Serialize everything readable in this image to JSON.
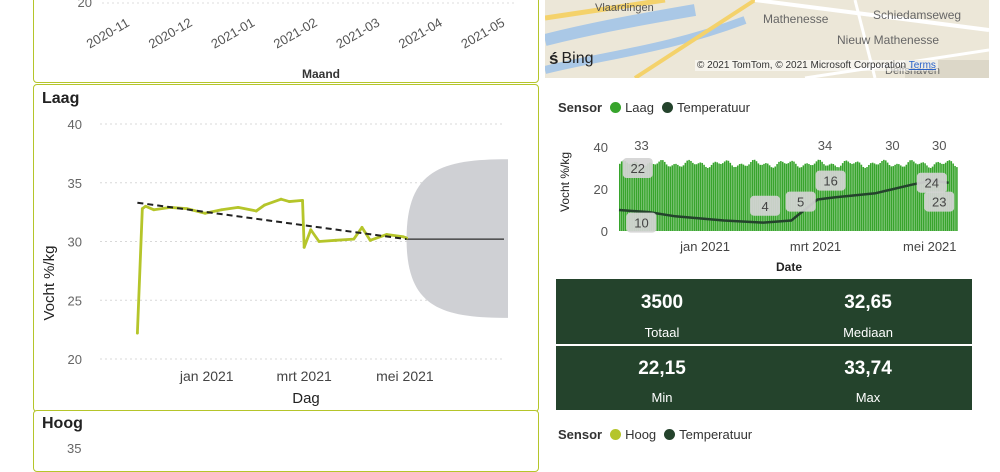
{
  "top_chart": {
    "y_tick": "20",
    "x_ticks": [
      "2020-11",
      "2020-12",
      "2021-01",
      "2021-02",
      "2021-03",
      "2021-04",
      "2021-05"
    ],
    "xlabel": "Maand"
  },
  "laag_panel": {
    "title": "Laag",
    "chart_data": {
      "type": "line",
      "ylabel": "Vocht %/kg",
      "xlabel": "Dag",
      "ylim": [
        20,
        40
      ],
      "y_ticks": [
        "40",
        "35",
        "30",
        "25",
        "20"
      ],
      "x_ticks": [
        "jan 2021",
        "mrt 2021",
        "mei 2021"
      ],
      "series": [
        {
          "x": [
            "2020-11-20",
            "2020-11-23",
            "2020-11-25",
            "2020-11-30",
            "2020-12-10",
            "2020-12-20",
            "2020-12-31",
            "2021-01-10",
            "2021-01-20",
            "2021-01-31",
            "2021-02-05",
            "2021-02-15",
            "2021-02-20",
            "2021-02-28",
            "2021-03-01",
            "2021-03-05",
            "2021-03-10",
            "2021-03-20",
            "2021-03-31",
            "2021-04-05",
            "2021-04-10",
            "2021-04-20",
            "2021-04-30",
            "2021-05-02"
          ],
          "values": [
            22.2,
            32.8,
            33.0,
            32.7,
            32.9,
            32.8,
            32.4,
            32.7,
            32.9,
            32.6,
            33.1,
            33.6,
            33.4,
            33.5,
            29.5,
            31.0,
            30.0,
            30.1,
            30.2,
            31.2,
            30.1,
            30.6,
            30.4,
            30.3
          ]
        }
      ],
      "trend": {
        "start": 33.3,
        "end": 30.2,
        "style": "dashed"
      },
      "forecast": {
        "value": 30.2,
        "lower": 23.5,
        "upper": 37.0
      }
    }
  },
  "hoog_panel": {
    "title": "Hoog",
    "y_tick": "35"
  },
  "map": {
    "labels": [
      "Vlaardingen",
      "Mathenesse",
      "Schiedamseweg",
      "Nieuw Mathenesse",
      "Delfshaven"
    ],
    "brand": "Bing",
    "copyright": "© 2021 TomTom, © 2021 Microsoft Corporation",
    "terms": "Terms"
  },
  "legend_top": {
    "title": "Sensor",
    "items": [
      {
        "label": "Laag",
        "color": "#37a42c"
      },
      {
        "label": "Temperatuur",
        "color": "#24432c"
      }
    ]
  },
  "combo_chart": {
    "chart_data": {
      "type": "bar",
      "ylabel": "Vocht %/kg",
      "xlabel": "Date",
      "ylim": [
        0,
        40
      ],
      "y_ticks": [
        "40",
        "20",
        "0"
      ],
      "x_ticks": [
        "jan 2021",
        "mrt 2021",
        "mei 2021"
      ],
      "bar_series": {
        "name": "Laag",
        "values_range": [
          29,
          34
        ]
      },
      "line_series": {
        "name": "Temperatuur",
        "points": [
          {
            "x": "2020-11-15",
            "y": 10
          },
          {
            "x": "2020-12-01",
            "y": 9
          },
          {
            "x": "2020-12-15",
            "y": 7
          },
          {
            "x": "2021-01-10",
            "y": 5
          },
          {
            "x": "2021-01-31",
            "y": 4
          },
          {
            "x": "2021-02-15",
            "y": 5
          },
          {
            "x": "2021-03-01",
            "y": 15
          },
          {
            "x": "2021-03-10",
            "y": 16
          },
          {
            "x": "2021-04-01",
            "y": 18
          },
          {
            "x": "2021-04-20",
            "y": 22
          },
          {
            "x": "2021-05-01",
            "y": 24
          },
          {
            "x": "2021-05-10",
            "y": 23
          }
        ]
      },
      "data_labels": [
        "33",
        "22",
        "10",
        "4",
        "5",
        "16",
        "34",
        "30",
        "30",
        "24",
        "23"
      ]
    }
  },
  "kpis": [
    {
      "value": "3500",
      "label": "Totaal"
    },
    {
      "value": "32,65",
      "label": "Mediaan"
    },
    {
      "value": "22,15",
      "label": "Min"
    },
    {
      "value": "33,74",
      "label": "Max"
    }
  ],
  "legend_bottom": {
    "title": "Sensor",
    "items": [
      {
        "label": "Hoog",
        "color": "#b5c52a"
      },
      {
        "label": "Temperatuur",
        "color": "#24432c"
      }
    ]
  },
  "colors": {
    "accent": "#b5c52a",
    "bars": "#37a42c",
    "dark": "#24432c",
    "band": "#cfd0d4"
  }
}
